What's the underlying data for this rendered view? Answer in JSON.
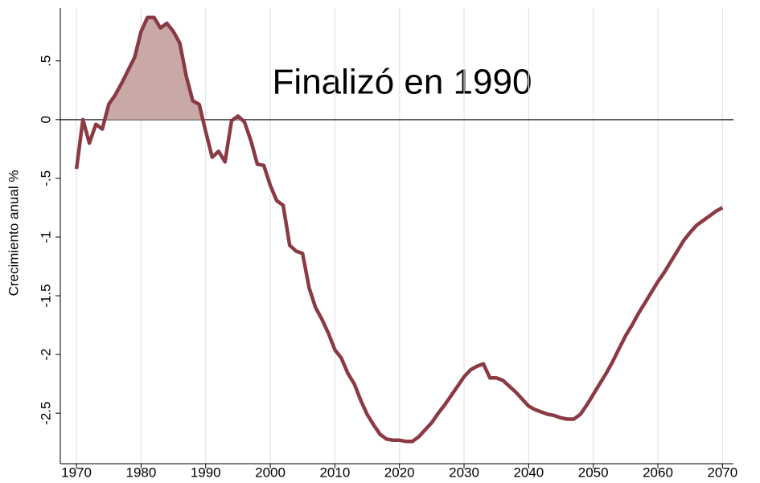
{
  "chart_data": {
    "type": "line",
    "ylabel": "Crecimiento anual %",
    "annotation": "Finalizó en 1990",
    "x": [
      1970,
      1971,
      1972,
      1973,
      1974,
      1975,
      1976,
      1977,
      1978,
      1979,
      1980,
      1981,
      1982,
      1983,
      1984,
      1985,
      1986,
      1987,
      1988,
      1989,
      1990,
      1991,
      1992,
      1993,
      1994,
      1995,
      1996,
      1997,
      1998,
      1999,
      2000,
      2001,
      2002,
      2003,
      2004,
      2005,
      2006,
      2007,
      2008,
      2009,
      2010,
      2011,
      2012,
      2013,
      2014,
      2015,
      2016,
      2017,
      2018,
      2019,
      2020,
      2021,
      2022,
      2023,
      2024,
      2025,
      2026,
      2027,
      2028,
      2029,
      2030,
      2031,
      2032,
      2033,
      2034,
      2035,
      2036,
      2037,
      2038,
      2039,
      2040,
      2041,
      2042,
      2043,
      2044,
      2045,
      2046,
      2047,
      2048,
      2049,
      2050,
      2051,
      2052,
      2053,
      2054,
      2055,
      2056,
      2057,
      2058,
      2059,
      2060,
      2061,
      2062,
      2063,
      2064,
      2065,
      2066,
      2067,
      2068,
      2069,
      2070
    ],
    "series": [
      {
        "name": "Crecimiento anual",
        "color": "#8b3a44",
        "fill": "#c9a9a6",
        "values": [
          -0.42,
          0,
          -0.2,
          -0.04,
          -0.08,
          0.13,
          0.21,
          0.31,
          0.42,
          0.53,
          0.75,
          0.87,
          0.87,
          0.78,
          0.82,
          0.75,
          0.65,
          0.37,
          0.16,
          0.13,
          -0.1,
          -0.32,
          -0.27,
          -0.36,
          -0.01,
          0.03,
          -0.02,
          -0.18,
          -0.38,
          -0.39,
          -0.56,
          -0.69,
          -0.73,
          -1.07,
          -1.12,
          -1.14,
          -1.43,
          -1.6,
          -1.7,
          -1.82,
          -1.96,
          -2.03,
          -2.16,
          -2.25,
          -2.39,
          -2.51,
          -2.6,
          -2.68,
          -2.72,
          -2.73,
          -2.73,
          -2.74,
          -2.74,
          -2.7,
          -2.64,
          -2.58,
          -2.5,
          -2.43,
          -2.35,
          -2.27,
          -2.19,
          -2.13,
          -2.1,
          -2.08,
          -2.2,
          -2.2,
          -2.22,
          -2.27,
          -2.32,
          -2.38,
          -2.44,
          -2.47,
          -2.49,
          -2.51,
          -2.52,
          -2.54,
          -2.55,
          -2.55,
          -2.51,
          -2.43,
          -2.34,
          -2.25,
          -2.16,
          -2.06,
          -1.95,
          -1.84,
          -1.75,
          -1.65,
          -1.56,
          -1.47,
          -1.38,
          -1.3,
          -1.21,
          -1.12,
          -1.03,
          -0.96,
          -0.9,
          -0.86,
          -0.82,
          -0.78,
          -0.75
        ]
      }
    ],
    "xlim": [
      1967.5,
      2071.7
    ],
    "xticks": [
      1970,
      1980,
      1990,
      2000,
      2010,
      2020,
      2030,
      2040,
      2050,
      2060,
      2070
    ],
    "ylim": [
      -2.93,
      0.95
    ],
    "yticks": [
      {
        "value": 0.5,
        "label": ".5"
      },
      0,
      {
        "value": -0.5,
        "label": "-.5"
      },
      -1,
      -1.5,
      -2,
      -2.5
    ],
    "grid": "x"
  }
}
